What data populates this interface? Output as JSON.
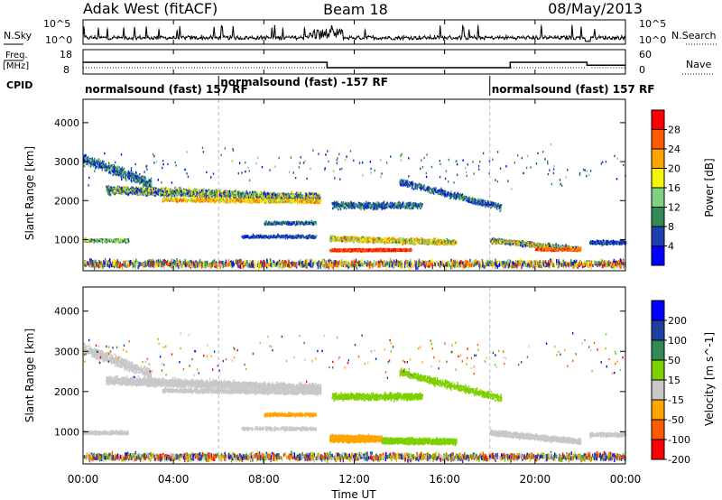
{
  "header": {
    "station": "Adak West (fitACF)",
    "beam": "Beam 18",
    "date": "08/May/2013"
  },
  "panel_labels": {
    "nsky": "N.Sky",
    "nsearch": "N.Search",
    "freq": "Freq.",
    "freq_unit": "[MHz]",
    "nave": "Nave",
    "cpid": "CPID"
  },
  "noise_axis": {
    "top": "10^5",
    "bottom": "10^0"
  },
  "freq_axis": {
    "ticks": [
      "18",
      "8"
    ]
  },
  "nave_axis": {
    "ticks": [
      "60",
      "0"
    ]
  },
  "cpid_segments": [
    {
      "label": "normalsound (fast) 157 RF",
      "start_hour": 0,
      "end_hour": 6
    },
    {
      "label": "normalsound (fast) -157 RF",
      "start_hour": 6,
      "end_hour": 18
    },
    {
      "label": "normalsound (fast) 157 RF",
      "start_hour": 18,
      "end_hour": 24
    }
  ],
  "chart_data": [
    {
      "type": "line",
      "name": "frequency",
      "x_hours": [
        0,
        10.8,
        10.8,
        18.9,
        18.9,
        22.3,
        22.3,
        24
      ],
      "y_mhz": [
        12.8,
        12.8,
        10.6,
        10.6,
        12.8,
        12.8,
        11.6,
        11.6
      ],
      "ylim": [
        8,
        18
      ]
    },
    {
      "type": "heatmap",
      "name": "power",
      "ylabel": "Slant Range [km]",
      "yticks": [
        "4000",
        "3000",
        "2000",
        "1000"
      ],
      "colorbar_label": "Power [dB]",
      "colorbar_ticks": [
        "28",
        "24",
        "20",
        "16",
        "12",
        "8",
        "4"
      ],
      "ylim_km": [
        200,
        4600
      ]
    },
    {
      "type": "heatmap",
      "name": "velocity",
      "ylabel": "Slant Range [km]",
      "yticks": [
        "4000",
        "3000",
        "2000",
        "1000"
      ],
      "colorbar_label": "Velocity [m s^-1]",
      "colorbar_ticks": [
        "200",
        "100",
        "50",
        "15",
        "-15",
        "-50",
        "-100",
        "-200"
      ],
      "ylim_km": [
        200,
        4600
      ]
    }
  ],
  "time_axis": {
    "label": "Time UT",
    "ticks": [
      "00:00",
      "04:00",
      "08:00",
      "12:00",
      "16:00",
      "20:00",
      "00:00"
    ]
  },
  "colors": {
    "power": [
      "#0000ff",
      "#1f3fb0",
      "#2f8a55",
      "#7fd07f",
      "#f5f50a",
      "#ffa500",
      "#ff5a00",
      "#ff0000"
    ],
    "velocity": [
      "#ff0000",
      "#ff5a00",
      "#ffa500",
      "#c8c8c8",
      "#7fd000",
      "#2f8a55",
      "#2040a0",
      "#0000ff"
    ]
  }
}
